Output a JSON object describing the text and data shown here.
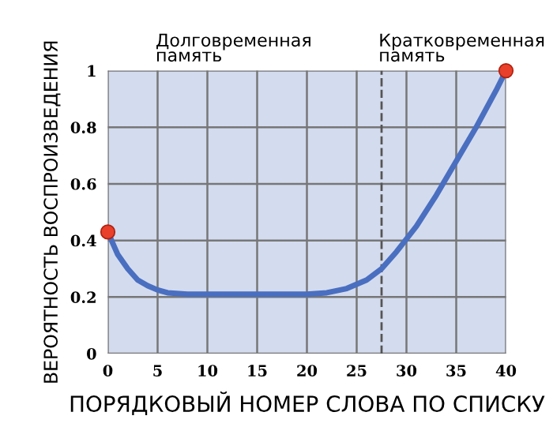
{
  "chart_data": {
    "type": "line",
    "xlabel": "ПОРЯДКОВЫЙ НОМЕР СЛОВА ПО СПИСКУ",
    "ylabel": "ВЕРОЯТНОСТЬ ВОСПРОИЗВЕДЕНИЯ",
    "annotations": [
      "Долговременная\nпамять",
      "Кратковременная\nпамять"
    ],
    "series": [
      {
        "color": "#4a6fc0",
        "x": [
          0,
          1,
          2,
          3,
          4,
          5,
          6,
          8,
          10,
          15,
          20,
          22,
          24,
          26,
          27.5,
          29,
          31,
          33,
          35,
          37,
          39,
          40
        ],
        "values": [
          0.43,
          0.35,
          0.3,
          0.26,
          0.24,
          0.225,
          0.215,
          0.21,
          0.21,
          0.21,
          0.21,
          0.215,
          0.23,
          0.26,
          0.3,
          0.36,
          0.45,
          0.56,
          0.68,
          0.8,
          0.93,
          1.0
        ]
      },
      {
        "type": "scatter",
        "color": "#e8402a",
        "marker": "circle",
        "x": [
          0,
          40
        ],
        "values": [
          0.43,
          1.0
        ]
      }
    ],
    "xlim": [
      0,
      40
    ],
    "xticks": [
      0,
      5,
      10,
      15,
      20,
      25,
      30,
      35,
      40
    ],
    "ylim": [
      0,
      1
    ],
    "yticks": [
      0,
      0.2,
      0.4,
      0.6,
      0.8,
      1
    ],
    "grid": true,
    "ref_lines": [
      {
        "axis": "x",
        "value": 27.5,
        "color": "#555555",
        "line_style": "dashed"
      }
    ]
  }
}
